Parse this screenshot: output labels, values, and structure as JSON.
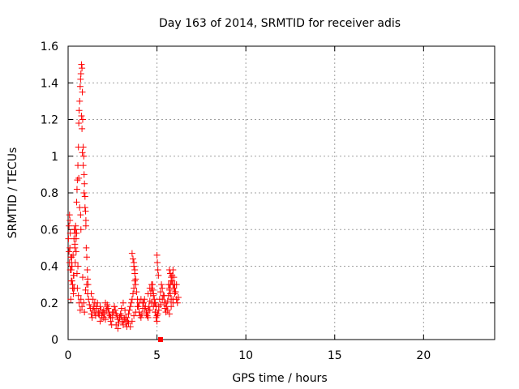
{
  "chart_data": {
    "type": "scatter",
    "title": "Day 163 of 2014, SRMTID for receiver adis",
    "xlabel": "GPS time / hours",
    "ylabel": "SRMTID / TECUs",
    "xlim": [
      0,
      24
    ],
    "ylim": [
      0,
      1.6
    ],
    "xticks": [
      0,
      5,
      10,
      15,
      20
    ],
    "yticks": [
      0,
      0.2,
      0.4,
      0.6,
      0.8,
      1,
      1.2,
      1.4,
      1.6
    ],
    "xtick_labels": [
      "0",
      "5",
      "10",
      "15",
      "20"
    ],
    "ytick_labels": [
      "0",
      "0.2",
      "0.4",
      "0.6",
      "0.8",
      "1",
      "1.2",
      "1.4",
      "1.6"
    ],
    "grid": true,
    "marker": "+",
    "color": "#ff0000",
    "series": [
      {
        "name": "SRMTID",
        "x": [
          0.02,
          0.05,
          0.08,
          0.1,
          0.12,
          0.15,
          0.18,
          0.2,
          0.22,
          0.25,
          0.28,
          0.3,
          0.32,
          0.35,
          0.38,
          0.4,
          0.42,
          0.45,
          0.48,
          0.5,
          0.52,
          0.55,
          0.58,
          0.6,
          0.62,
          0.65,
          0.68,
          0.7,
          0.72,
          0.75,
          0.78,
          0.8,
          0.82,
          0.85,
          0.88,
          0.9,
          0.92,
          0.95,
          0.98,
          1.0,
          1.02,
          1.05,
          1.08,
          1.1,
          1.12,
          0.6,
          0.65,
          0.7,
          0.72,
          0.75,
          0.78,
          0.8,
          0.85,
          0.9,
          0.95,
          1.0,
          0.4,
          0.45,
          0.5,
          0.55,
          0.35,
          0.3,
          0.25,
          0.2,
          0.15,
          0.1,
          0.05,
          0.08,
          0.12,
          0.18,
          0.22,
          0.28,
          0.33,
          0.38,
          0.42,
          0.48,
          0.52,
          0.58,
          0.62,
          0.68,
          0.72,
          0.78,
          0.82,
          0.88,
          0.92,
          0.98,
          1.05,
          1.1,
          1.15,
          1.2,
          1.25,
          1.3,
          1.35,
          1.4,
          1.45,
          1.5,
          1.55,
          1.6,
          1.65,
          1.7,
          1.75,
          1.8,
          1.85,
          1.9,
          1.95,
          2.0,
          2.05,
          2.1,
          2.15,
          2.2,
          2.25,
          2.3,
          2.35,
          2.4,
          2.45,
          2.5,
          2.55,
          2.6,
          2.65,
          2.7,
          2.75,
          2.8,
          2.85,
          2.9,
          2.95,
          3.0,
          3.05,
          3.1,
          3.15,
          3.2,
          3.25,
          3.3,
          3.35,
          3.4,
          3.45,
          3.5,
          3.55,
          3.6,
          3.65,
          3.7,
          3.75,
          3.8,
          3.85,
          3.9,
          3.95,
          4.0,
          4.05,
          4.1,
          4.15,
          4.2,
          4.25,
          4.3,
          4.35,
          4.4,
          4.45,
          4.5,
          4.55,
          4.6,
          4.65,
          4.7,
          4.75,
          4.8,
          4.85,
          4.9,
          4.95,
          5.0,
          5.05,
          5.1,
          5.15,
          5.2,
          5.25,
          5.3,
          5.35,
          5.4,
          5.45,
          5.5,
          5.55,
          5.6,
          5.65,
          5.7,
          5.75,
          5.8,
          5.85,
          5.9,
          5.95,
          6.0,
          6.05,
          6.1,
          6.15,
          6.2,
          1.3,
          1.4,
          1.5,
          1.6,
          1.7,
          1.8,
          1.9,
          2.0,
          2.1,
          2.2,
          2.3,
          2.4,
          2.5,
          2.6,
          2.7,
          2.8,
          2.9,
          3.0,
          3.1,
          3.2,
          3.3,
          3.4,
          3.5,
          3.6,
          3.7,
          3.8,
          3.9,
          4.0,
          4.1,
          4.2,
          4.3,
          4.4,
          4.5,
          4.6,
          4.7,
          4.8,
          4.9,
          5.0,
          5.1,
          5.2,
          5.3,
          5.4,
          5.5,
          5.6,
          5.7,
          5.8,
          5.9,
          6.0,
          6.1,
          3.6,
          3.65,
          3.7,
          3.75,
          3.8,
          3.7,
          3.75,
          4.5,
          4.6,
          4.7,
          4.75,
          4.8,
          4.85,
          4.9,
          4.95,
          5.0,
          5.02,
          5.05,
          5.08,
          5.7,
          5.75,
          5.8,
          5.85,
          5.9,
          5.95,
          6.0,
          5.65,
          5.7,
          5.75,
          5.8,
          5.9
        ],
        "y": [
          0.55,
          0.62,
          0.68,
          0.65,
          0.58,
          0.45,
          0.38,
          0.42,
          0.32,
          0.3,
          0.28,
          0.25,
          0.35,
          0.28,
          0.5,
          0.58,
          0.6,
          0.55,
          0.75,
          0.82,
          0.87,
          0.95,
          1.05,
          1.18,
          1.25,
          1.3,
          1.38,
          1.42,
          1.45,
          1.5,
          1.48,
          1.35,
          1.2,
          1.05,
          1.0,
          0.9,
          0.85,
          0.78,
          0.7,
          0.65,
          0.5,
          0.45,
          0.38,
          0.33,
          0.3,
          0.88,
          0.72,
          0.68,
          0.6,
          1.22,
          1.15,
          1.02,
          0.95,
          0.8,
          0.72,
          0.62,
          0.42,
          0.48,
          0.36,
          0.4,
          0.6,
          0.35,
          0.28,
          0.45,
          0.22,
          0.5,
          0.48,
          0.42,
          0.38,
          0.32,
          0.4,
          0.46,
          0.55,
          0.52,
          0.62,
          0.58,
          0.28,
          0.24,
          0.2,
          0.16,
          0.22,
          0.18,
          0.34,
          0.2,
          0.15,
          0.27,
          0.3,
          0.25,
          0.22,
          0.19,
          0.17,
          0.14,
          0.12,
          0.16,
          0.18,
          0.15,
          0.13,
          0.17,
          0.2,
          0.15,
          0.14,
          0.18,
          0.16,
          0.13,
          0.15,
          0.12,
          0.14,
          0.11,
          0.16,
          0.19,
          0.17,
          0.15,
          0.13,
          0.1,
          0.08,
          0.12,
          0.15,
          0.18,
          0.16,
          0.14,
          0.13,
          0.11,
          0.09,
          0.12,
          0.14,
          0.13,
          0.1,
          0.08,
          0.11,
          0.12,
          0.09,
          0.07,
          0.1,
          0.14,
          0.16,
          0.18,
          0.2,
          0.22,
          0.25,
          0.28,
          0.32,
          0.3,
          0.26,
          0.22,
          0.18,
          0.15,
          0.13,
          0.12,
          0.14,
          0.17,
          0.2,
          0.22,
          0.18,
          0.15,
          0.13,
          0.16,
          0.18,
          0.21,
          0.25,
          0.28,
          0.3,
          0.25,
          0.2,
          0.15,
          0.12,
          0.1,
          0.14,
          0.18,
          0.22,
          0.26,
          0.3,
          0.28,
          0.24,
          0.2,
          0.17,
          0.15,
          0.18,
          0.21,
          0.24,
          0.27,
          0.3,
          0.32,
          0.35,
          0.38,
          0.34,
          0.3,
          0.26,
          0.22,
          0.2,
          0.23,
          0.25,
          0.22,
          0.2,
          0.18,
          0.14,
          0.1,
          0.12,
          0.16,
          0.2,
          0.18,
          0.14,
          0.12,
          0.15,
          0.18,
          0.08,
          0.06,
          0.12,
          0.17,
          0.2,
          0.16,
          0.12,
          0.09,
          0.07,
          0.1,
          0.13,
          0.15,
          0.18,
          0.2,
          0.22,
          0.2,
          0.17,
          0.14,
          0.12,
          0.16,
          0.2,
          0.18,
          0.15,
          0.13,
          0.16,
          0.19,
          0.22,
          0.24,
          0.2,
          0.16,
          0.14,
          0.18,
          0.22,
          0.25,
          0.3,
          0.47,
          0.44,
          0.4,
          0.36,
          0.33,
          0.42,
          0.38,
          0.25,
          0.28,
          0.3,
          0.27,
          0.24,
          0.22,
          0.2,
          0.18,
          0.46,
          0.42,
          0.38,
          0.35,
          0.38,
          0.36,
          0.34,
          0.32,
          0.3,
          0.28,
          0.26,
          0.3,
          0.28,
          0.25,
          0.22,
          0.2
        ]
      }
    ],
    "annotations": [
      {
        "type": "square-marker",
        "x": 5.2,
        "y": 0.0
      }
    ]
  }
}
